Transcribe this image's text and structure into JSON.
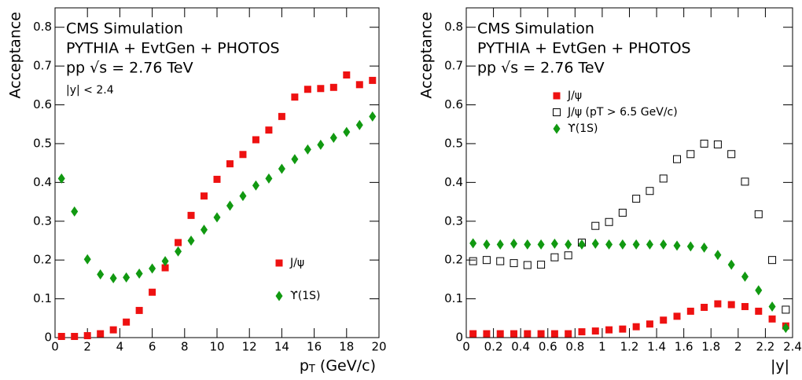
{
  "chart_data": [
    {
      "type": "scatter",
      "annotations": [
        "CMS Simulation",
        "PYTHIA + EvtGen + PHOTOS",
        "pp √s = 2.76 TeV",
        "|y| < 2.4"
      ],
      "x_label": [
        "p",
        "T",
        " (GeV/c)"
      ],
      "y_label": "Acceptance",
      "xlim": [
        0,
        20
      ],
      "xticks": [
        0,
        2,
        4,
        6,
        8,
        10,
        12,
        14,
        16,
        18,
        20
      ],
      "ylim": [
        0,
        0.85
      ],
      "yticks": [
        0,
        0.1,
        0.2,
        0.3,
        0.4,
        0.5,
        0.6,
        0.7,
        0.8
      ],
      "legend": "lower right",
      "x": [
        0.4,
        1.2,
        2.0,
        2.8,
        3.6,
        4.4,
        5.2,
        6.0,
        6.8,
        7.6,
        8.4,
        9.2,
        10.0,
        10.8,
        11.6,
        12.4,
        13.2,
        14.0,
        14.8,
        15.6,
        16.4,
        17.2,
        18.0,
        18.8,
        19.6
      ],
      "series": [
        {
          "name": "J/ψ",
          "color": "#ee1111",
          "marker": "square",
          "values": [
            0.003,
            0.003,
            0.005,
            0.01,
            0.02,
            0.04,
            0.07,
            0.117,
            0.18,
            0.245,
            0.315,
            0.365,
            0.408,
            0.448,
            0.472,
            0.51,
            0.535,
            0.57,
            0.62,
            0.64,
            0.642,
            0.645,
            0.677,
            0.652,
            0.663
          ]
        },
        {
          "name": "ϒ(1S)",
          "color": "#119911",
          "marker": "diamond",
          "values": [
            0.41,
            0.325,
            0.202,
            0.163,
            0.153,
            0.155,
            0.165,
            0.178,
            0.197,
            0.222,
            0.25,
            0.278,
            0.31,
            0.34,
            0.365,
            0.392,
            0.41,
            0.435,
            0.46,
            0.485,
            0.497,
            0.515,
            0.53,
            0.548,
            0.57
          ]
        }
      ]
    },
    {
      "type": "scatter",
      "annotations": [
        "CMS Simulation",
        "PYTHIA + EvtGen + PHOTOS",
        "pp √s = 2.76 TeV"
      ],
      "x_label": [
        "|y|"
      ],
      "y_label": "Acceptance",
      "xlim": [
        0,
        2.4
      ],
      "xticks": [
        0,
        0.2,
        0.4,
        0.6,
        0.8,
        1,
        1.2,
        1.4,
        1.6,
        1.8,
        2,
        2.2,
        2.4
      ],
      "ylim": [
        0,
        0.85
      ],
      "yticks": [
        0,
        0.1,
        0.2,
        0.3,
        0.4,
        0.5,
        0.6,
        0.7,
        0.8
      ],
      "legend": "upper center",
      "x": [
        0.05,
        0.15,
        0.25,
        0.35,
        0.45,
        0.55,
        0.65,
        0.75,
        0.85,
        0.95,
        1.05,
        1.15,
        1.25,
        1.35,
        1.45,
        1.55,
        1.65,
        1.75,
        1.85,
        1.95,
        2.05,
        2.15,
        2.25,
        2.35
      ],
      "series": [
        {
          "name": "J/ψ",
          "color": "#ee1111",
          "marker": "square",
          "values": [
            0.01,
            0.01,
            0.01,
            0.01,
            0.01,
            0.01,
            0.01,
            0.01,
            0.015,
            0.017,
            0.02,
            0.022,
            0.028,
            0.035,
            0.045,
            0.055,
            0.068,
            0.078,
            0.087,
            0.085,
            0.08,
            0.068,
            0.048,
            0.03
          ]
        },
        {
          "name": "J/ψ (pT > 6.5 GeV/c)",
          "color": "#000000",
          "marker": "open-square",
          "values": [
            0.197,
            0.2,
            0.197,
            0.192,
            0.187,
            0.188,
            0.207,
            0.212,
            0.245,
            0.288,
            0.298,
            0.322,
            0.358,
            0.378,
            0.41,
            0.46,
            0.473,
            0.5,
            0.498,
            0.473,
            0.402,
            0.318,
            0.2,
            0.072
          ]
        },
        {
          "name": "ϒ(1S)",
          "color": "#119911",
          "marker": "diamond",
          "values": [
            0.243,
            0.24,
            0.24,
            0.242,
            0.24,
            0.24,
            0.242,
            0.24,
            0.24,
            0.242,
            0.24,
            0.24,
            0.24,
            0.24,
            0.24,
            0.237,
            0.235,
            0.232,
            0.213,
            0.188,
            0.157,
            0.122,
            0.08,
            0.025
          ]
        }
      ]
    }
  ]
}
